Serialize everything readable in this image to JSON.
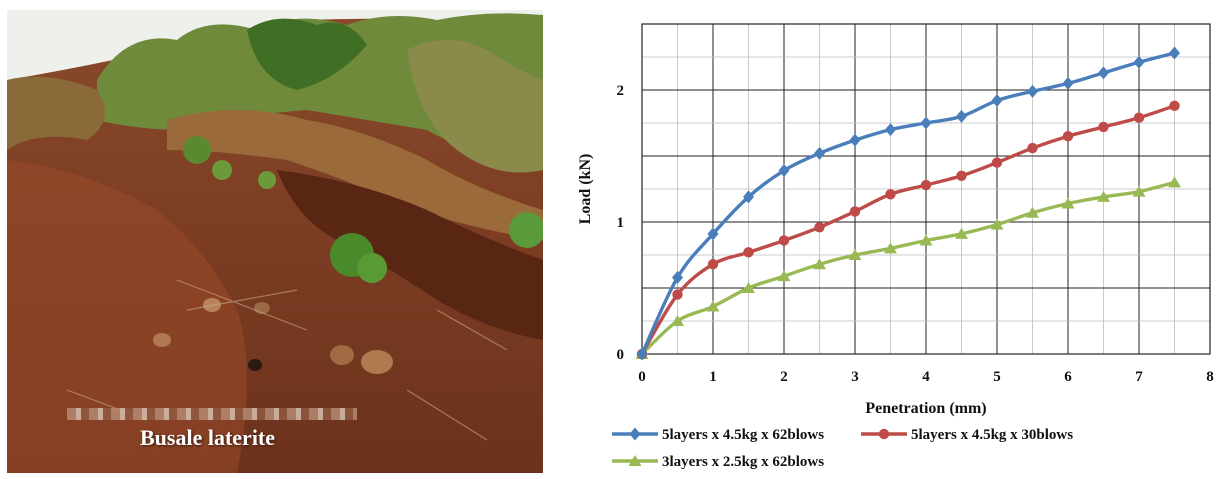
{
  "photo": {
    "caption": "Busale laterite"
  },
  "chart_data": {
    "type": "line",
    "xlabel": "Penetration (mm)",
    "ylabel": "Load (kN)",
    "xlim": [
      0,
      8
    ],
    "ylim": [
      0,
      2.5
    ],
    "xticks": [
      0,
      1,
      2,
      3,
      4,
      5,
      6,
      7,
      8
    ],
    "yticks": [
      0,
      1,
      2
    ],
    "grid": true,
    "legend_position": "bottom",
    "x": [
      0,
      0.5,
      1,
      1.5,
      2,
      2.5,
      3,
      3.5,
      4,
      4.5,
      5,
      5.5,
      6,
      6.5,
      7,
      7.5
    ],
    "series": [
      {
        "name": "5layers x 4.5kg x 62blows",
        "color": "#4a7ebb",
        "marker": "diamond",
        "values": [
          0,
          0.58,
          0.91,
          1.19,
          1.39,
          1.52,
          1.62,
          1.7,
          1.75,
          1.8,
          1.92,
          1.99,
          2.05,
          2.13,
          2.21,
          2.28
        ]
      },
      {
        "name": "5layers x 4.5kg x 30blows",
        "color": "#be4b48",
        "marker": "circle",
        "values": [
          0,
          0.45,
          0.68,
          0.77,
          0.86,
          0.96,
          1.08,
          1.21,
          1.28,
          1.35,
          1.45,
          1.56,
          1.65,
          1.72,
          1.79,
          1.88
        ]
      },
      {
        "name": "3layers x 2.5kg x 62blows",
        "color": "#98b954",
        "marker": "triangle",
        "values": [
          0,
          0.25,
          0.36,
          0.5,
          0.59,
          0.68,
          0.75,
          0.8,
          0.86,
          0.91,
          0.98,
          1.07,
          1.14,
          1.19,
          1.23,
          1.3
        ]
      }
    ]
  }
}
